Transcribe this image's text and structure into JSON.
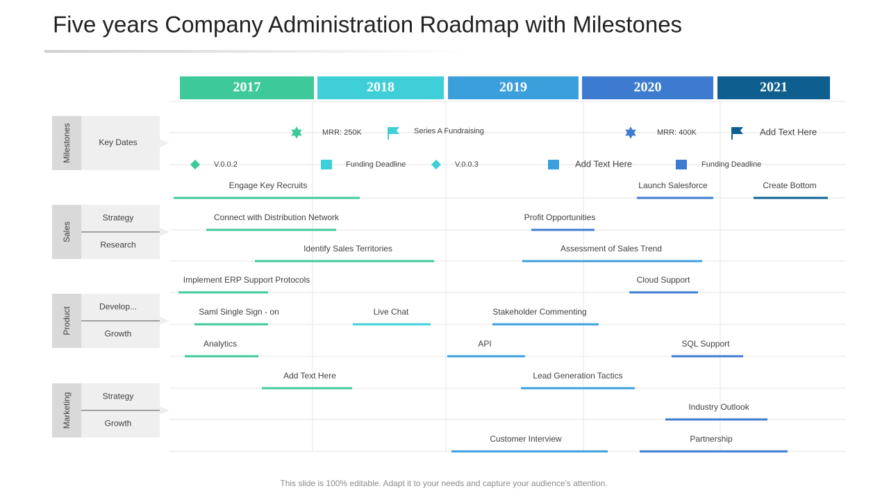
{
  "title": "Five years Company Administration Roadmap with Milestones",
  "years": [
    "2017",
    "2018",
    "2019",
    "2020",
    "2021"
  ],
  "groups": [
    {
      "label": "Milestones",
      "rows": [
        "Key Dates"
      ]
    },
    {
      "label": "Sales",
      "rows": [
        "Strategy",
        "Research"
      ]
    },
    {
      "label": "Product",
      "rows": [
        "Develop...",
        "Growth"
      ]
    },
    {
      "label": "Marketing",
      "rows": [
        "Strategy",
        "Growth"
      ]
    }
  ],
  "milestones": [
    "MRR: 250K",
    "Series A Fundraising",
    "MRR: 400K",
    "Add Text Here",
    "V.0.0.2",
    "Funding Deadline",
    "V.0.0.3",
    "Add Text Here",
    "Funding Deadline"
  ],
  "tasks": [
    "Engage Key Recruits",
    "Launch Salesforce",
    "Create Bottom",
    "Connect with Distribution Network",
    "Profit Opportunities",
    "Identify Sales Territories",
    "Assessment of Sales Trend",
    "Implement ERP Support Protocols",
    "Cloud Support",
    "Saml Single Sign - on",
    "Live Chat",
    "Stakeholder Commenting",
    "Analytics",
    "API",
    "SQL Support",
    "Add Text Here",
    "Lead Generation Tactics",
    "Industry Outlook",
    "Customer Interview",
    "Partnership"
  ],
  "footer": "This slide is 100% editable. Adapt it to your needs and capture your audience's attention."
}
